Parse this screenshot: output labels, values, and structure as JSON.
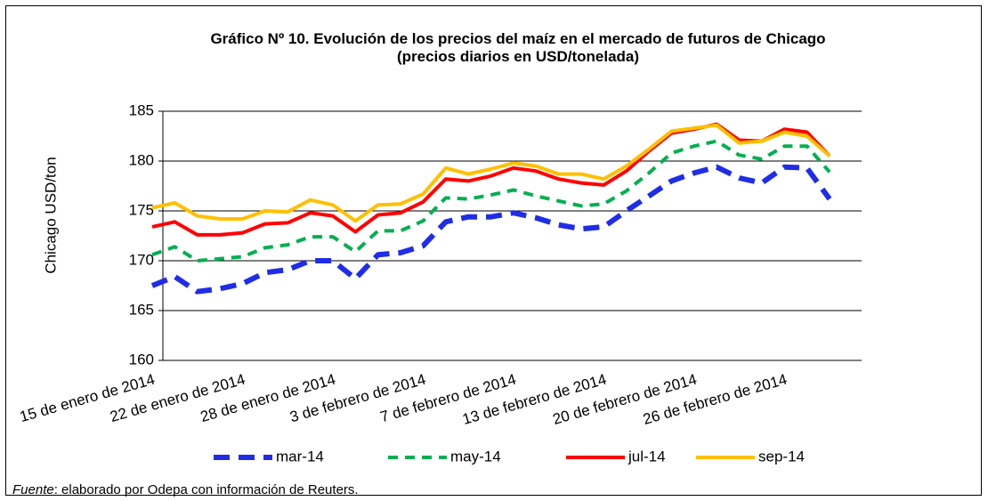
{
  "chart_data": {
    "type": "line",
    "title": "Gráfico Nº 10. Evolución de los precios del maíz en el mercado de futuros de Chicago",
    "subtitle": "(precios diarios en USD/tonelada)",
    "y_label": "Chicago USD/ton",
    "categories": [
      "15 de enero de 2014",
      null,
      null,
      null,
      "22 de enero de 2014",
      null,
      null,
      null,
      "28 de enero de 2014",
      null,
      null,
      null,
      "3 de febrero de 2014",
      null,
      null,
      null,
      "7 de febrero de 2014",
      null,
      null,
      null,
      "13 de febrero de 2014",
      null,
      null,
      null,
      "20 de febrero de 2014",
      null,
      null,
      null,
      "26 de febrero de 2014",
      null,
      null
    ],
    "ylim": [
      160,
      185
    ],
    "yticks": [
      160,
      165,
      170,
      175,
      180,
      185
    ],
    "grid": true,
    "series": [
      {
        "name": "mar-14",
        "color": "#1f2de8",
        "line_style": "dashed",
        "values": [
          167.5,
          168.4,
          166.9,
          167.2,
          167.7,
          168.8,
          169.1,
          170.0,
          170.0,
          168.2,
          170.6,
          170.8,
          171.5,
          173.9,
          174.4,
          174.4,
          174.8,
          174.3,
          173.6,
          173.2,
          173.4,
          175.0,
          176.5,
          178.0,
          178.8,
          179.4,
          178.3,
          177.8,
          179.4,
          179.3,
          176.2
        ]
      },
      {
        "name": "may-14",
        "color": "#00b050",
        "line_style": "dashed",
        "values": [
          170.6,
          171.4,
          170.0,
          170.2,
          170.4,
          171.3,
          171.6,
          172.4,
          172.4,
          170.9,
          173.0,
          173.0,
          174.0,
          176.3,
          176.2,
          176.6,
          177.1,
          176.5,
          176.0,
          175.5,
          175.7,
          177.0,
          178.8,
          180.8,
          181.5,
          182.0,
          180.6,
          180.2,
          181.5,
          181.5,
          178.9
        ]
      },
      {
        "name": "jul-14",
        "color": "#ff0000",
        "line_style": "solid",
        "values": [
          173.4,
          173.9,
          172.6,
          172.6,
          172.8,
          173.7,
          173.8,
          174.8,
          174.5,
          172.9,
          174.6,
          174.8,
          175.9,
          178.2,
          178.0,
          178.5,
          179.3,
          179.0,
          178.2,
          177.8,
          177.6,
          179.0,
          181.0,
          182.8,
          183.2,
          183.7,
          182.1,
          182.0,
          183.2,
          182.9,
          180.5
        ]
      },
      {
        "name": "sep-14",
        "color": "#ffc000",
        "line_style": "solid",
        "values": [
          175.3,
          175.8,
          174.5,
          174.2,
          174.2,
          175.0,
          174.9,
          176.1,
          175.6,
          174.0,
          175.6,
          175.7,
          176.7,
          179.3,
          178.7,
          179.2,
          179.8,
          179.5,
          178.7,
          178.7,
          178.2,
          179.5,
          181.2,
          183.0,
          183.3,
          183.6,
          181.8,
          182.0,
          182.9,
          182.5,
          180.5
        ]
      }
    ],
    "source": {
      "label": "Fuente",
      "text": ": elaborado por Odepa con información de Reuters."
    }
  }
}
